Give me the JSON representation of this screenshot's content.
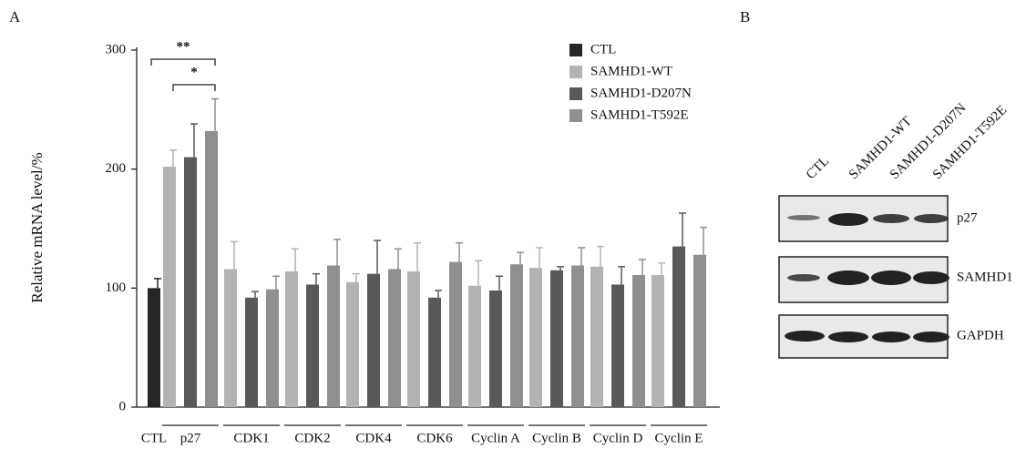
{
  "chart_data": {
    "type": "bar",
    "y_label": "Relative mRNA level/%",
    "categories": [
      "CTL",
      "p27",
      "CDK1",
      "CDK2",
      "CDK4",
      "CDK6",
      "Cyclin A",
      "Cyclin B",
      "Cyclin D",
      "Cyclin E"
    ],
    "series": [
      {
        "name": "CTL",
        "color": "#262626",
        "values": [
          100,
          null,
          null,
          null,
          null,
          null,
          null,
          null,
          null,
          null
        ],
        "errors": [
          8,
          null,
          null,
          null,
          null,
          null,
          null,
          null,
          null,
          null
        ]
      },
      {
        "name": "SAMHD1-WT",
        "color": "#b3b3b3",
        "values": [
          null,
          202,
          116,
          114,
          105,
          114,
          102,
          117,
          118,
          111
        ],
        "errors": [
          null,
          14,
          23,
          19,
          7,
          24,
          21,
          17,
          17,
          10
        ]
      },
      {
        "name": "SAMHD1-D207N",
        "color": "#595959",
        "values": [
          null,
          210,
          92,
          103,
          112,
          92,
          98,
          115,
          103,
          135
        ],
        "errors": [
          null,
          28,
          5,
          9,
          28,
          6,
          12,
          3,
          15,
          28
        ]
      },
      {
        "name": "SAMHD1-T592E",
        "color": "#8f8f8f",
        "values": [
          null,
          232,
          99,
          119,
          116,
          122,
          120,
          119,
          111,
          128
        ],
        "errors": [
          null,
          27,
          11,
          22,
          17,
          16,
          10,
          15,
          13,
          23
        ]
      }
    ],
    "ylim": [
      0,
      300
    ],
    "yticks": [
      0,
      100,
      200,
      300
    ],
    "grid": false,
    "legend": "upper right",
    "annotations": [
      {
        "text": "**"
      },
      {
        "text": "*"
      }
    ]
  },
  "panel_labels": [
    "A",
    "B"
  ],
  "blot": {
    "lanes": [
      "CTL",
      "SAMHD1-WT",
      "SAMHD1-D207N",
      "SAMHD1-T592E"
    ],
    "bands": [
      "p27",
      "SAMHD1",
      "GAPDH"
    ]
  }
}
